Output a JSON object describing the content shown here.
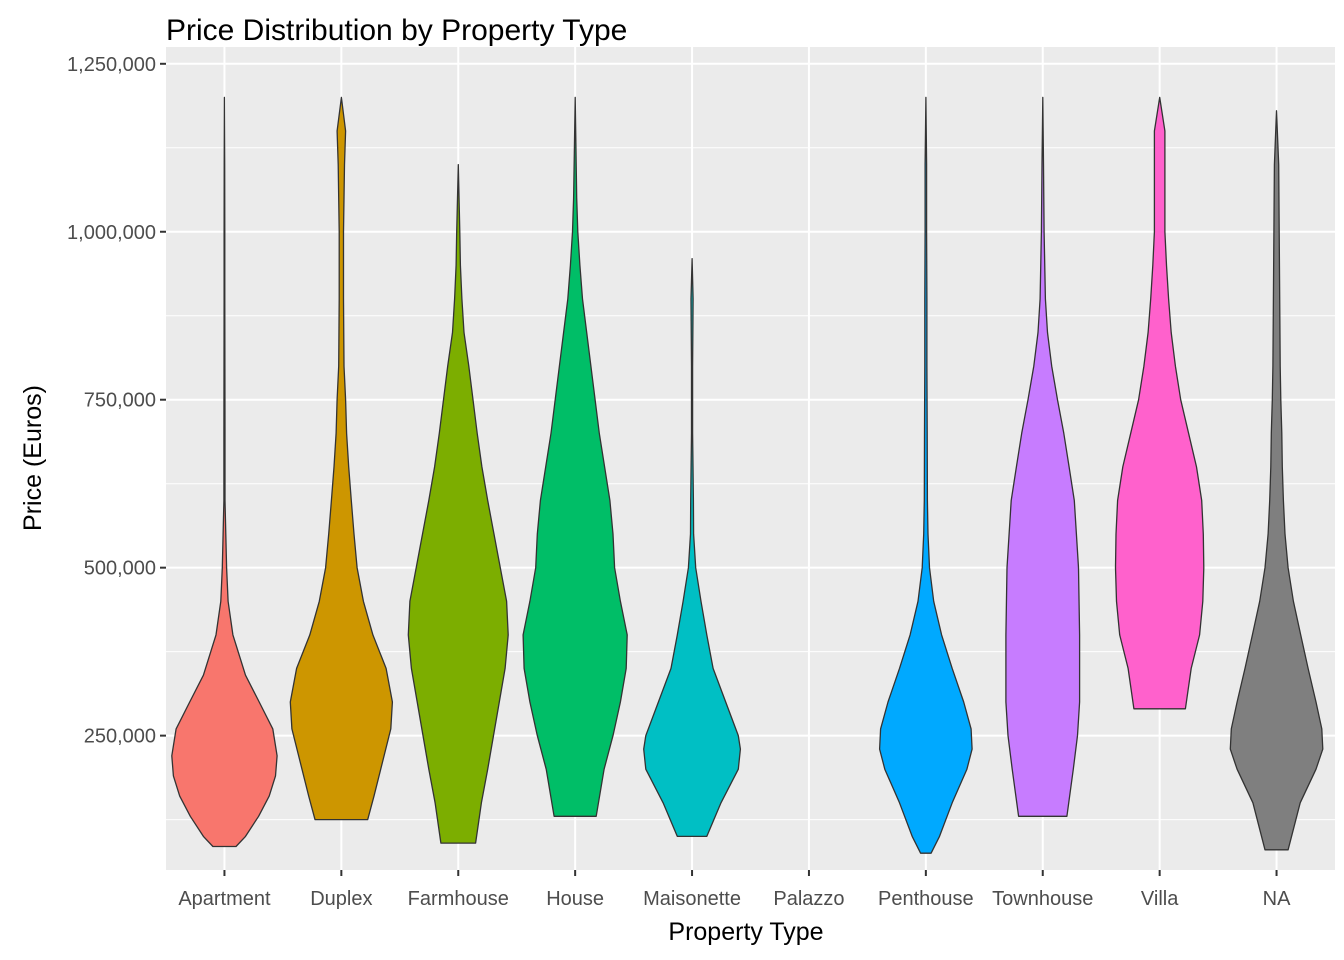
{
  "chart_data": {
    "type": "violin",
    "title": "Price Distribution by Property Type",
    "xlabel": "Property Type",
    "ylabel": "Price (Euros)",
    "ylim": [
      50000,
      1275000
    ],
    "yticks": [
      250000,
      500000,
      750000,
      1000000,
      1250000
    ],
    "ytick_labels": [
      "250,000",
      "500,000",
      "750,000",
      "1,000,000",
      "1,250,000"
    ],
    "grid": true,
    "legend": "none",
    "categories": [
      "Apartment",
      "Duplex",
      "Farmhouse",
      "House",
      "Maisonette",
      "Palazzo",
      "Penthouse",
      "Townhouse",
      "Villa",
      "NA"
    ],
    "series": [
      {
        "category": "Apartment",
        "color": "#F8766D",
        "min": 85000,
        "max": 1200000,
        "profile": [
          [
            85000,
            0.0
          ],
          [
            85000,
            0.22
          ],
          [
            100000,
            0.4
          ],
          [
            130000,
            0.65
          ],
          [
            160000,
            0.85
          ],
          [
            190000,
            0.97
          ],
          [
            220000,
            1.0
          ],
          [
            260000,
            0.92
          ],
          [
            300000,
            0.66
          ],
          [
            340000,
            0.4
          ],
          [
            400000,
            0.16
          ],
          [
            450000,
            0.07
          ],
          [
            500000,
            0.04
          ],
          [
            550000,
            0.025
          ],
          [
            600000,
            0.01
          ],
          [
            700000,
            0.01
          ],
          [
            800000,
            0.008
          ],
          [
            900000,
            0.006
          ],
          [
            1000000,
            0.006
          ],
          [
            1100000,
            0.004
          ],
          [
            1200000,
            0.0
          ]
        ]
      },
      {
        "category": "Duplex",
        "color": "#CD9600",
        "min": 125000,
        "max": 1200000,
        "profile": [
          [
            125000,
            0.0
          ],
          [
            125000,
            0.5
          ],
          [
            160000,
            0.62
          ],
          [
            210000,
            0.78
          ],
          [
            260000,
            0.94
          ],
          [
            300000,
            0.97
          ],
          [
            350000,
            0.85
          ],
          [
            400000,
            0.6
          ],
          [
            450000,
            0.42
          ],
          [
            500000,
            0.3
          ],
          [
            550000,
            0.24
          ],
          [
            600000,
            0.19
          ],
          [
            650000,
            0.14
          ],
          [
            700000,
            0.1
          ],
          [
            750000,
            0.08
          ],
          [
            800000,
            0.05
          ],
          [
            900000,
            0.04
          ],
          [
            1000000,
            0.04
          ],
          [
            1100000,
            0.06
          ],
          [
            1150000,
            0.08
          ],
          [
            1200000,
            0.0
          ]
        ]
      },
      {
        "category": "Farmhouse",
        "color": "#7CAE00",
        "min": 90000,
        "max": 1100000,
        "profile": [
          [
            90000,
            0.0
          ],
          [
            90000,
            0.33
          ],
          [
            150000,
            0.44
          ],
          [
            200000,
            0.56
          ],
          [
            250000,
            0.67
          ],
          [
            300000,
            0.78
          ],
          [
            350000,
            0.89
          ],
          [
            400000,
            0.95
          ],
          [
            450000,
            0.92
          ],
          [
            500000,
            0.8
          ],
          [
            550000,
            0.68
          ],
          [
            600000,
            0.56
          ],
          [
            650000,
            0.45
          ],
          [
            700000,
            0.36
          ],
          [
            750000,
            0.28
          ],
          [
            800000,
            0.2
          ],
          [
            850000,
            0.11
          ],
          [
            900000,
            0.07
          ],
          [
            950000,
            0.04
          ],
          [
            1000000,
            0.03
          ],
          [
            1100000,
            0.0
          ]
        ]
      },
      {
        "category": "House",
        "color": "#00BE67",
        "min": 130000,
        "max": 1200000,
        "profile": [
          [
            130000,
            0.0
          ],
          [
            130000,
            0.4
          ],
          [
            200000,
            0.55
          ],
          [
            250000,
            0.72
          ],
          [
            300000,
            0.86
          ],
          [
            350000,
            0.97
          ],
          [
            400000,
            0.99
          ],
          [
            450000,
            0.86
          ],
          [
            500000,
            0.75
          ],
          [
            550000,
            0.72
          ],
          [
            600000,
            0.66
          ],
          [
            650000,
            0.56
          ],
          [
            700000,
            0.46
          ],
          [
            750000,
            0.38
          ],
          [
            800000,
            0.3
          ],
          [
            850000,
            0.22
          ],
          [
            900000,
            0.14
          ],
          [
            950000,
            0.09
          ],
          [
            1000000,
            0.05
          ],
          [
            1050000,
            0.03
          ],
          [
            1200000,
            0.0
          ]
        ]
      },
      {
        "category": "Maisonette",
        "color": "#00BFC4",
        "min": 100000,
        "max": 960000,
        "profile": [
          [
            100000,
            0.0
          ],
          [
            100000,
            0.28
          ],
          [
            150000,
            0.55
          ],
          [
            200000,
            0.88
          ],
          [
            230000,
            0.92
          ],
          [
            250000,
            0.88
          ],
          [
            300000,
            0.64
          ],
          [
            350000,
            0.4
          ],
          [
            400000,
            0.28
          ],
          [
            450000,
            0.17
          ],
          [
            500000,
            0.07
          ],
          [
            550000,
            0.03
          ],
          [
            600000,
            0.025
          ],
          [
            700000,
            0.01
          ],
          [
            800000,
            0.01
          ],
          [
            900000,
            0.02
          ],
          [
            960000,
            0.0
          ]
        ]
      },
      {
        "category": "Penthouse",
        "color": "#00A9FF",
        "min": 75000,
        "max": 1200000,
        "profile": [
          [
            75000,
            0.0
          ],
          [
            75000,
            0.1
          ],
          [
            100000,
            0.26
          ],
          [
            150000,
            0.5
          ],
          [
            200000,
            0.78
          ],
          [
            230000,
            0.88
          ],
          [
            260000,
            0.86
          ],
          [
            300000,
            0.72
          ],
          [
            350000,
            0.5
          ],
          [
            400000,
            0.3
          ],
          [
            450000,
            0.15
          ],
          [
            500000,
            0.07
          ],
          [
            550000,
            0.04
          ],
          [
            600000,
            0.03
          ],
          [
            700000,
            0.025
          ],
          [
            800000,
            0.02
          ],
          [
            900000,
            0.02
          ],
          [
            1000000,
            0.015
          ],
          [
            1100000,
            0.015
          ],
          [
            1200000,
            0.0
          ]
        ]
      },
      {
        "category": "Townhouse",
        "color": "#C77CFF",
        "min": 130000,
        "max": 1200000,
        "profile": [
          [
            130000,
            0.0
          ],
          [
            130000,
            0.46
          ],
          [
            200000,
            0.58
          ],
          [
            250000,
            0.66
          ],
          [
            300000,
            0.7
          ],
          [
            400000,
            0.7
          ],
          [
            500000,
            0.68
          ],
          [
            550000,
            0.64
          ],
          [
            600000,
            0.6
          ],
          [
            650000,
            0.5
          ],
          [
            700000,
            0.4
          ],
          [
            750000,
            0.28
          ],
          [
            800000,
            0.17
          ],
          [
            850000,
            0.09
          ],
          [
            900000,
            0.05
          ],
          [
            1000000,
            0.025
          ],
          [
            1100000,
            0.015
          ],
          [
            1200000,
            0.0
          ]
        ]
      },
      {
        "category": "Villa",
        "color": "#FF61CC",
        "min": 290000,
        "max": 1200000,
        "profile": [
          [
            290000,
            0.0
          ],
          [
            290000,
            0.49
          ],
          [
            350000,
            0.6
          ],
          [
            400000,
            0.76
          ],
          [
            450000,
            0.82
          ],
          [
            500000,
            0.84
          ],
          [
            550000,
            0.83
          ],
          [
            600000,
            0.8
          ],
          [
            650000,
            0.7
          ],
          [
            700000,
            0.55
          ],
          [
            750000,
            0.4
          ],
          [
            800000,
            0.3
          ],
          [
            850000,
            0.22
          ],
          [
            900000,
            0.17
          ],
          [
            950000,
            0.13
          ],
          [
            1000000,
            0.1
          ],
          [
            1100000,
            0.1
          ],
          [
            1150000,
            0.1
          ],
          [
            1200000,
            0.0
          ]
        ]
      },
      {
        "category": "NA",
        "color": "#7F7F7F",
        "min": 80000,
        "max": 1180000,
        "profile": [
          [
            80000,
            0.0
          ],
          [
            80000,
            0.22
          ],
          [
            150000,
            0.45
          ],
          [
            200000,
            0.75
          ],
          [
            230000,
            0.88
          ],
          [
            260000,
            0.86
          ],
          [
            300000,
            0.75
          ],
          [
            350000,
            0.6
          ],
          [
            400000,
            0.46
          ],
          [
            450000,
            0.32
          ],
          [
            500000,
            0.22
          ],
          [
            550000,
            0.16
          ],
          [
            600000,
            0.13
          ],
          [
            650000,
            0.11
          ],
          [
            700000,
            0.1
          ],
          [
            750000,
            0.08
          ],
          [
            800000,
            0.07
          ],
          [
            900000,
            0.06
          ],
          [
            1000000,
            0.05
          ],
          [
            1100000,
            0.04
          ],
          [
            1180000,
            0.0
          ]
        ]
      }
    ]
  }
}
